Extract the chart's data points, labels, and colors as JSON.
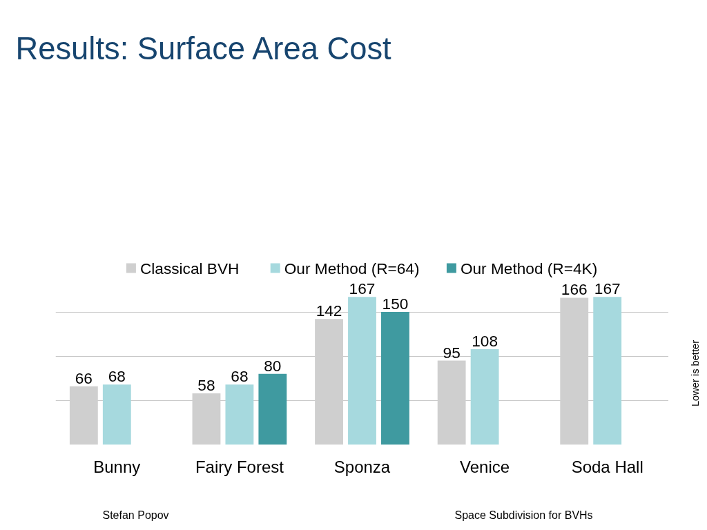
{
  "chart_data": {
    "type": "bar",
    "title": "Results: Surface Area Cost",
    "categories": [
      "Bunny",
      "Fairy Forest",
      "Sponza",
      "Venice",
      "Soda Hall"
    ],
    "series": [
      {
        "name": "Classical BVH",
        "color": "#cfcfcf",
        "values": [
          66,
          58,
          142,
          95,
          166
        ]
      },
      {
        "name": "Our Method (R=64)",
        "color": "#a6d9de",
        "values": [
          68,
          68,
          167,
          108,
          167
        ]
      },
      {
        "name": "Our Method (R=4K)",
        "color": "#3f9aa0",
        "values": [
          null,
          80,
          150,
          null,
          null
        ]
      }
    ],
    "tick_labels": "x",
    "grid": "y",
    "legend": "top",
    "data_labels": true,
    "annotations": [
      "Lower is better",
      "Stefan Popov",
      "Space Subdivision for BVHs"
    ]
  }
}
